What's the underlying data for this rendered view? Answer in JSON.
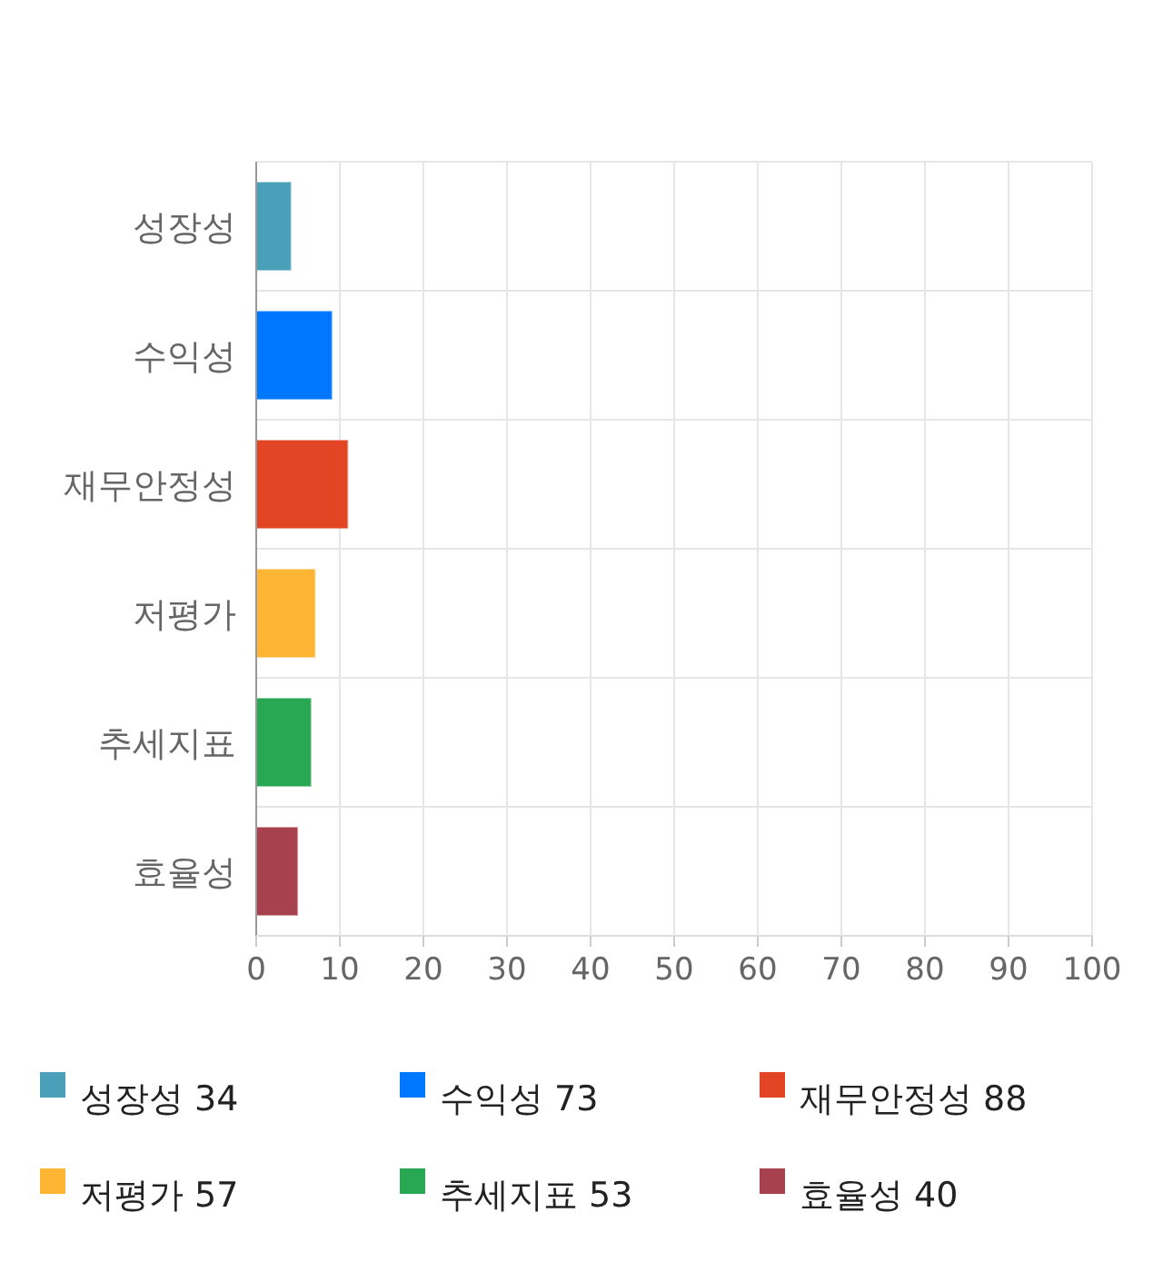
{
  "chart_data": {
    "type": "bar",
    "orientation": "horizontal",
    "categories": [
      "성장성",
      "수익성",
      "재무안정성",
      "저평가",
      "추세지표",
      "효율성"
    ],
    "series": [
      {
        "name": "성장성 34",
        "color": "#4aa0b8",
        "values": [
          4.1,
          null,
          null,
          null,
          null,
          null
        ]
      },
      {
        "name": "수익성 73",
        "color": "#0077ff",
        "values": [
          null,
          9,
          null,
          null,
          null,
          null
        ]
      },
      {
        "name": "재무안정성 88",
        "color": "#e24524",
        "values": [
          null,
          null,
          10.9,
          null,
          null,
          null
        ]
      },
      {
        "name": "저평가 57",
        "color": "#fdb533",
        "values": [
          null,
          null,
          null,
          7,
          null,
          null
        ]
      },
      {
        "name": "추세지표 53",
        "color": "#29a853",
        "values": [
          null,
          null,
          null,
          null,
          6.5,
          null
        ]
      },
      {
        "name": "효율성 40",
        "color": "#a8414e",
        "values": [
          null,
          null,
          null,
          null,
          null,
          4.9
        ]
      }
    ],
    "xlim": [
      0,
      100
    ],
    "xticks": [
      0,
      10,
      20,
      30,
      40,
      50,
      60,
      70,
      80,
      90,
      100
    ],
    "grid": true,
    "legend": "bottom"
  }
}
